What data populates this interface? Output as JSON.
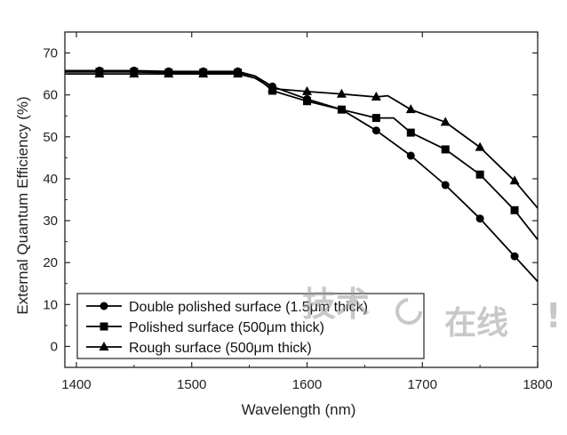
{
  "chart_data": {
    "type": "line",
    "xlabel": "Wavelength (nm)",
    "ylabel": "External Quantum Efficiency (%)",
    "xlim": [
      1390,
      1800
    ],
    "ylim": [
      -5,
      75
    ],
    "xticks": [
      1400,
      1500,
      1600,
      1700,
      1800
    ],
    "yticks": [
      0,
      10,
      20,
      30,
      40,
      50,
      60,
      70
    ],
    "legend_position": "bottom-left",
    "series": [
      {
        "name": "Double polished surface (1.5μm thick)",
        "marker": "circle",
        "x": [
          1390,
          1420,
          1450,
          1480,
          1510,
          1540,
          1555,
          1570,
          1600,
          1630,
          1660,
          1690,
          1720,
          1750,
          1780,
          1800
        ],
        "y": [
          65.8,
          65.8,
          65.8,
          65.6,
          65.6,
          65.6,
          64.5,
          62,
          59,
          56.5,
          51.5,
          45.5,
          38.5,
          30.5,
          21.5,
          15.5
        ]
      },
      {
        "name": "Polished surface (500μm thick)",
        "marker": "square",
        "x": [
          1390,
          1420,
          1450,
          1480,
          1510,
          1540,
          1555,
          1570,
          1600,
          1630,
          1660,
          1675,
          1690,
          1720,
          1750,
          1780,
          1800
        ],
        "y": [
          65.5,
          65.5,
          65.5,
          65.3,
          65.3,
          65.3,
          64.5,
          61,
          58.5,
          56.5,
          54.5,
          54.5,
          51,
          47,
          41,
          32.5,
          25.5
        ]
      },
      {
        "name": "Rough surface (500μm thick)",
        "marker": "triangle",
        "x": [
          1390,
          1420,
          1450,
          1480,
          1510,
          1540,
          1555,
          1570,
          1600,
          1630,
          1660,
          1670,
          1690,
          1720,
          1750,
          1780,
          1800
        ],
        "y": [
          65,
          65,
          65,
          65,
          65,
          65,
          64,
          61.5,
          60.8,
          60.2,
          59.5,
          59.8,
          56.5,
          53.5,
          47.5,
          39.5,
          33
        ]
      }
    ]
  },
  "watermark": {
    "text_main": "技术",
    "text_sub": "在线",
    "glyph_symbol": "!"
  }
}
